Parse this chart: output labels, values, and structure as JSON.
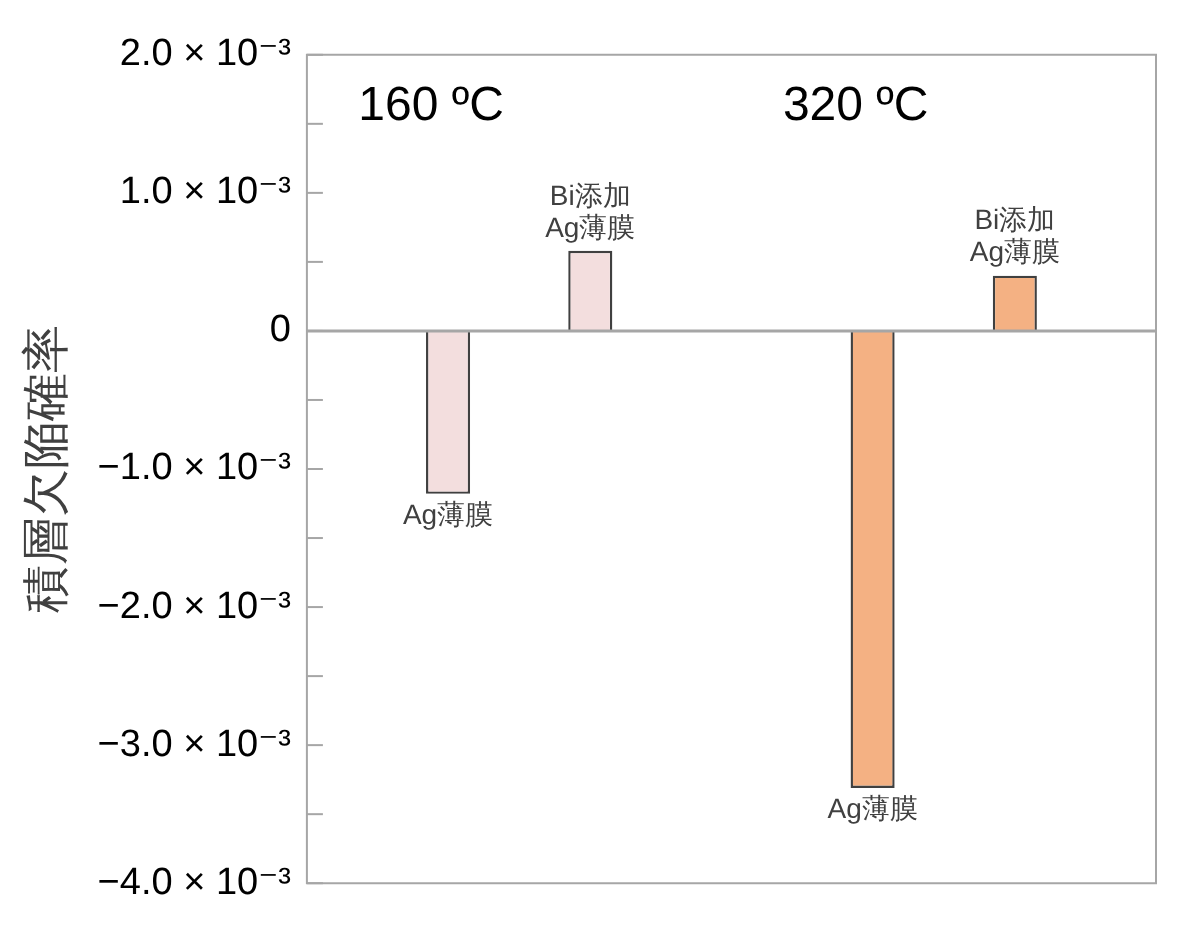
{
  "chart_data": {
    "type": "bar",
    "ylabel": "積層欠陥確率",
    "categories": [
      "160 ºC",
      "320 ºC"
    ],
    "series": [
      {
        "name": "Ag薄膜",
        "colors": [
          "#f3dede",
          "#f4b183"
        ],
        "values": [
          -0.00118,
          -0.00331
        ]
      },
      {
        "name": "Bi添加\nAg薄膜",
        "colors": [
          "#f3dede",
          "#f4b183"
        ],
        "values": [
          0.00058,
          0.0004
        ]
      }
    ],
    "ylim": [
      -0.004,
      0.002
    ],
    "yticks": [
      {
        "value": 0.002,
        "label": "2.0 × 10⁻³"
      },
      {
        "value": 0.0015,
        "label": null
      },
      {
        "value": 0.001,
        "label": "1.0 × 10⁻³"
      },
      {
        "value": 0.0005,
        "label": null
      },
      0,
      {
        "value": -0.0005,
        "label": null
      },
      {
        "value": -0.001,
        "label": "−1.0 × 10⁻³"
      },
      {
        "value": -0.0015,
        "label": null
      },
      {
        "value": -0.002,
        "label": "−2.0 × 10⁻³"
      },
      {
        "value": -0.0025,
        "label": null
      },
      {
        "value": -0.003,
        "label": "−3.0 × 10⁻³"
      },
      {
        "value": -0.0035,
        "label": null
      },
      {
        "value": -0.004,
        "label": "−4.0 × 10⁻³"
      }
    ],
    "ref_lines": [
      {
        "axis": "y",
        "value": 0,
        "color": "#a6a6a6"
      }
    ],
    "grid": false,
    "legend": false
  }
}
